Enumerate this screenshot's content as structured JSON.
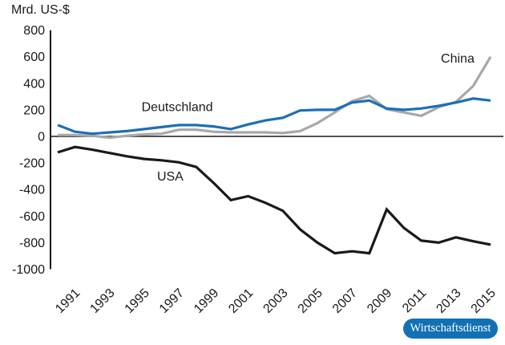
{
  "unit_label": "Mrd. US-$",
  "badge": {
    "label": "Wirtschaftsdienst",
    "bg_color": "#1271b5",
    "text_color": "#ffffff"
  },
  "colors": {
    "axis": "#1a1a1a",
    "background": "#ffffff"
  },
  "chart_data": {
    "type": "line",
    "title": "Mrd. US-$",
    "xlabel": "",
    "ylabel": "Mrd. US-$",
    "ylim": [
      -1000,
      800
    ],
    "y_ticks": [
      800,
      600,
      400,
      200,
      0,
      -200,
      -400,
      -600,
      -800,
      -1000
    ],
    "x": [
      1990,
      1991,
      1992,
      1993,
      1994,
      1995,
      1996,
      1997,
      1998,
      1999,
      2000,
      2001,
      2002,
      2003,
      2004,
      2005,
      2006,
      2007,
      2008,
      2009,
      2010,
      2011,
      2012,
      2013,
      2014,
      2015
    ],
    "x_tick_labels": [
      "1991",
      "1993",
      "1995",
      "1997",
      "1999",
      "2001",
      "2003",
      "2005",
      "2007",
      "2009",
      "2011",
      "2013",
      "2015"
    ],
    "grid": false,
    "legend_position": "inline-labels",
    "series": [
      {
        "name": "Deutschland",
        "color": "#1d6eb7",
        "values": [
          85,
          35,
          20,
          30,
          40,
          55,
          70,
          85,
          85,
          75,
          55,
          90,
          120,
          140,
          195,
          200,
          200,
          255,
          270,
          210,
          200,
          210,
          230,
          255,
          285,
          270
        ]
      },
      {
        "name": "China",
        "color": "#a8a8a8",
        "values": [
          10,
          10,
          5,
          -10,
          5,
          15,
          20,
          50,
          50,
          35,
          30,
          30,
          30,
          25,
          40,
          100,
          180,
          265,
          305,
          205,
          180,
          155,
          220,
          260,
          380,
          600
        ]
      },
      {
        "name": "USA",
        "color": "#1a1a1a",
        "values": [
          -120,
          -80,
          -100,
          -125,
          -150,
          -170,
          -180,
          -195,
          -230,
          -350,
          -480,
          -450,
          -500,
          -560,
          -700,
          -800,
          -880,
          -865,
          -880,
          -550,
          -690,
          -785,
          -800,
          -760,
          -790,
          -815
        ]
      }
    ],
    "annotations": [
      {
        "label": "Deutschland",
        "year": 1996.9,
        "value": 225
      },
      {
        "label": "China",
        "year": 2013.1,
        "value": 590
      },
      {
        "label": "USA",
        "year": 1996.5,
        "value": -300
      }
    ]
  }
}
